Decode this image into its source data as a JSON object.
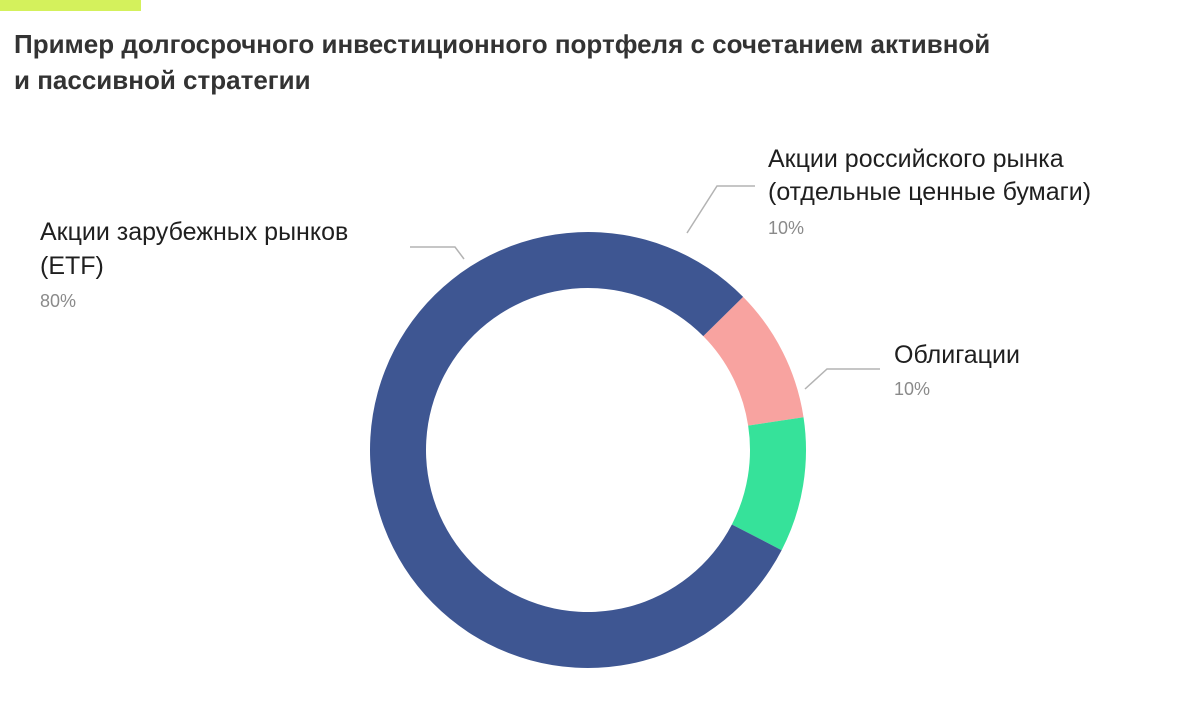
{
  "header": {
    "title_line1": "Пример долгосрочного инвестиционного портфеля с сочетанием активной",
    "title_line2": "и пассивной стратегии"
  },
  "colors": {
    "accent": "#d4f15c",
    "title_text": "#333333"
  },
  "chart_data": {
    "type": "pie",
    "donut": true,
    "title": "Пример долгосрочного инвестиционного портфеля с сочетанием активной и пассивной стратегии",
    "slices": [
      {
        "name": "Акции российского рынка (отдельные ценные бумаги)",
        "label_lines": [
          "Акции российского рынка",
          "(отдельные ценные бумаги)"
        ],
        "value": 10,
        "pct_label": "10%",
        "color": "#f8a3a0"
      },
      {
        "name": "Облигации",
        "label_lines": [
          "Облигации"
        ],
        "value": 10,
        "pct_label": "10%",
        "color": "#36e29a"
      },
      {
        "name": "Акции зарубежных рынков (ETF)",
        "label_lines": [
          "Акции зарубежных рынков",
          "(ETF)"
        ],
        "value": 80,
        "pct_label": "80%",
        "color": "#3e5692"
      }
    ],
    "legend": "none",
    "labels": "outside with leader lines"
  }
}
